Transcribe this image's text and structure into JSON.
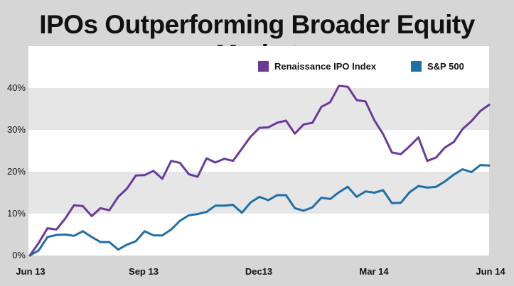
{
  "title": "IPOs Outperforming Broader Equity Market",
  "chart_data": {
    "type": "line",
    "title": "IPOs Outperforming Broader Equity Market",
    "xlabel": "",
    "ylabel": "",
    "y_ticks": [
      "0%",
      "10%",
      "20%",
      "30%",
      "40%"
    ],
    "y_tick_values": [
      0,
      10,
      20,
      30,
      40
    ],
    "ylim": [
      0,
      50
    ],
    "x_ticks": [
      "Jun 13",
      "Sep 13",
      "Dec13",
      "Mar 14",
      "Jun 14"
    ],
    "x_tick_values": [
      0,
      13,
      26,
      39,
      52
    ],
    "xlim": [
      0,
      52
    ],
    "grid": "alternating horizontal bands",
    "legend": {
      "position": "top-right"
    },
    "series": [
      {
        "name": "Renaissance IPO Index",
        "color": "#6b3a99",
        "values": [
          0,
          3,
          6.5,
          6.2,
          8.8,
          12,
          11.8,
          9.4,
          11.3,
          10.8,
          14,
          16,
          19.1,
          19.2,
          20.2,
          18.3,
          22.6,
          22.1,
          19.4,
          18.8,
          23.2,
          22.2,
          23.1,
          22.6,
          25.5,
          28.4,
          30.5,
          30.6,
          31.7,
          32.2,
          29.1,
          31.3,
          31.7,
          35.5,
          36.6,
          40.5,
          40.3,
          37.1,
          36.8,
          32.3,
          29,
          24.6,
          24.2,
          26.1,
          28.2,
          22.6,
          23.4,
          25.8,
          27.1,
          30.2,
          32.1,
          34.5,
          36
        ]
      },
      {
        "name": "S&P 500",
        "color": "#1f6fa8",
        "values": [
          0,
          1.2,
          4.4,
          4.9,
          5,
          4.7,
          5.8,
          4.4,
          3.2,
          3.2,
          1.4,
          2.6,
          3.4,
          5.8,
          4.8,
          4.8,
          6.2,
          8.3,
          9.6,
          9.9,
          10.4,
          11.9,
          11.9,
          12.1,
          10.2,
          12.7,
          14,
          13.2,
          14.4,
          14.4,
          11.3,
          10.7,
          11.5,
          13.8,
          13.5,
          15.1,
          16.4,
          14,
          15.3,
          15,
          15.6,
          12.5,
          12.6,
          15.1,
          16.6,
          16.2,
          16.4,
          17.7,
          19.3,
          20.6,
          19.9,
          21.6,
          21.5
        ]
      }
    ]
  }
}
